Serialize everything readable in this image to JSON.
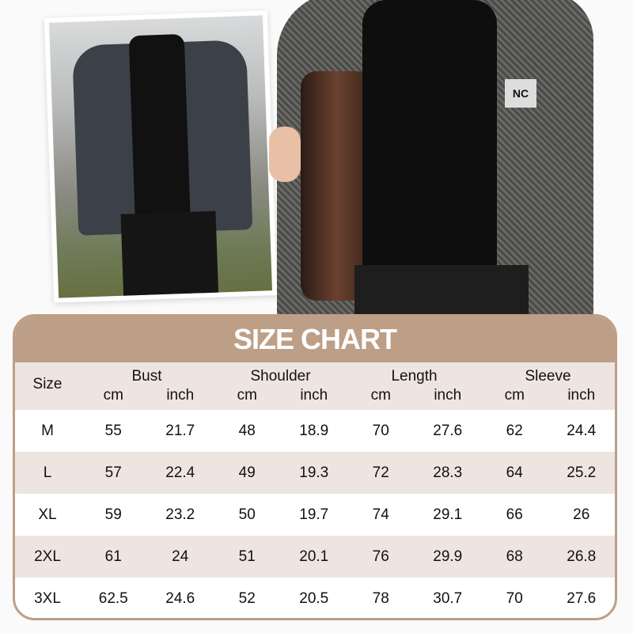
{
  "logo_text": "NC",
  "size_chart": {
    "title": "SIZE CHART",
    "size_header": "Size",
    "groups": [
      "Bust",
      "Shoulder",
      "Length",
      "Sleeve"
    ],
    "units": [
      "cm",
      "inch"
    ],
    "rows": [
      [
        "M",
        "55",
        "21.7",
        "48",
        "18.9",
        "70",
        "27.6",
        "62",
        "24.4"
      ],
      [
        "L",
        "57",
        "22.4",
        "49",
        "19.3",
        "72",
        "28.3",
        "64",
        "25.2"
      ],
      [
        "XL",
        "59",
        "23.2",
        "50",
        "19.7",
        "74",
        "29.1",
        "66",
        "26"
      ],
      [
        "2XL",
        "61",
        "24",
        "51",
        "20.1",
        "76",
        "29.9",
        "68",
        "26.8"
      ],
      [
        "3XL",
        "62.5",
        "24.6",
        "52",
        "20.5",
        "78",
        "30.7",
        "70",
        "27.6"
      ]
    ]
  },
  "colors": {
    "accent": "#bc9f86",
    "row_tint": "#efe5e0"
  }
}
